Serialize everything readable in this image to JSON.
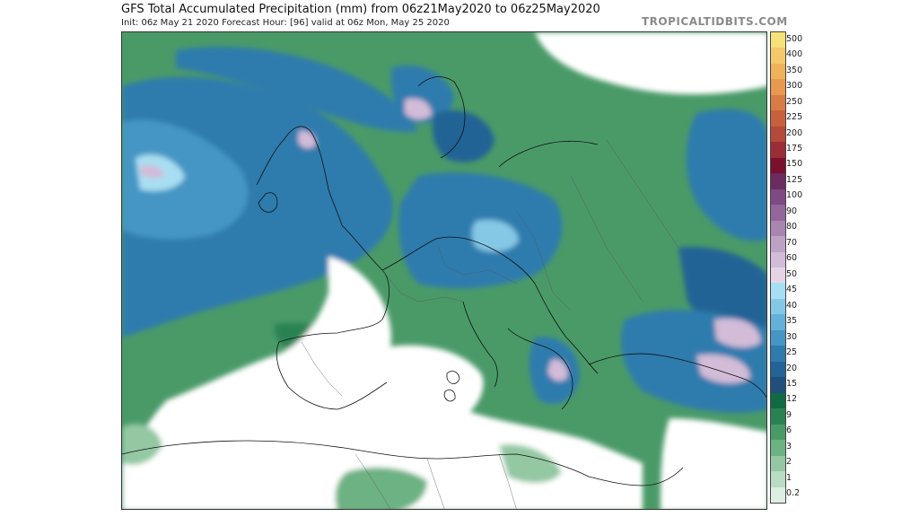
{
  "header": {
    "title": "GFS Total Accumulated Precipitation (mm) from 06z21May2020 to 06z25May2020",
    "subtitle": "Init: 06z May 21 2020   Forecast Hour: [96]   valid at 06z Mon, May 25 2020",
    "brand": "TROPICALTIDBITS.COM"
  },
  "legend": {
    "units": "mm",
    "levels": [
      {
        "label": "500",
        "color": "#f7e27a"
      },
      {
        "label": "400",
        "color": "#f5c86a"
      },
      {
        "label": "350",
        "color": "#efb25a"
      },
      {
        "label": "300",
        "color": "#e8984f"
      },
      {
        "label": "250",
        "color": "#d97b45"
      },
      {
        "label": "225",
        "color": "#c8603d"
      },
      {
        "label": "200",
        "color": "#b34a3a"
      },
      {
        "label": "175",
        "color": "#9a2d36"
      },
      {
        "label": "150",
        "color": "#7a0f2e"
      },
      {
        "label": "125",
        "color": "#6a2c61"
      },
      {
        "label": "100",
        "color": "#7e4a82"
      },
      {
        "label": "90",
        "color": "#93679b"
      },
      {
        "label": "80",
        "color": "#a985b1"
      },
      {
        "label": "70",
        "color": "#bea2c6"
      },
      {
        "label": "60",
        "color": "#d2bcd8"
      },
      {
        "label": "50",
        "color": "#e6d4e6"
      },
      {
        "label": "45",
        "color": "#a8def2"
      },
      {
        "label": "40",
        "color": "#85c8e6"
      },
      {
        "label": "35",
        "color": "#63b1d8"
      },
      {
        "label": "30",
        "color": "#4596c4"
      },
      {
        "label": "25",
        "color": "#2f7bad"
      },
      {
        "label": "20",
        "color": "#236395"
      },
      {
        "label": "15",
        "color": "#1f4f7a"
      },
      {
        "label": "12",
        "color": "#116a43"
      },
      {
        "label": "9",
        "color": "#2a8253"
      },
      {
        "label": "6",
        "color": "#4a9a68"
      },
      {
        "label": "3",
        "color": "#6db283"
      },
      {
        "label": "2",
        "color": "#93c8a3"
      },
      {
        "label": "1",
        "color": "#b9dcc4"
      },
      {
        "label": "0.2",
        "color": "#dcefe2"
      }
    ]
  }
}
